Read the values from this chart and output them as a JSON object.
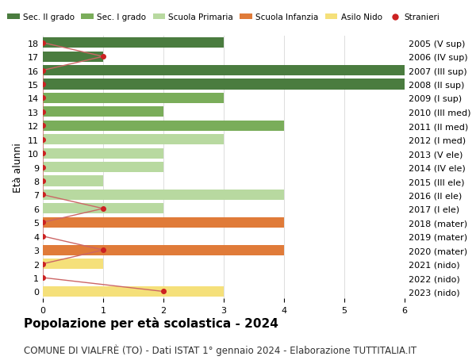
{
  "ages": [
    18,
    17,
    16,
    15,
    14,
    13,
    12,
    11,
    10,
    9,
    8,
    7,
    6,
    5,
    4,
    3,
    2,
    1,
    0
  ],
  "years": [
    "2005 (V sup)",
    "2006 (IV sup)",
    "2007 (III sup)",
    "2008 (II sup)",
    "2009 (I sup)",
    "2010 (III med)",
    "2011 (II med)",
    "2012 (I med)",
    "2013 (V ele)",
    "2014 (IV ele)",
    "2015 (III ele)",
    "2016 (II ele)",
    "2017 (I ele)",
    "2018 (mater)",
    "2019 (mater)",
    "2020 (mater)",
    "2021 (nido)",
    "2022 (nido)",
    "2023 (nido)"
  ],
  "bar_values": [
    3,
    1,
    6,
    6,
    3,
    2,
    4,
    3,
    2,
    2,
    1,
    4,
    2,
    4,
    0,
    4,
    1,
    0,
    3
  ],
  "bar_colors": [
    "#4a7c3f",
    "#4a7c3f",
    "#4a7c3f",
    "#4a7c3f",
    "#7aad5a",
    "#7aad5a",
    "#7aad5a",
    "#b8d9a0",
    "#b8d9a0",
    "#b8d9a0",
    "#b8d9a0",
    "#b8d9a0",
    "#b8d9a0",
    "#e07b39",
    "#e07b39",
    "#e07b39",
    "#f5e07a",
    "#f5e07a",
    "#f5e07a"
  ],
  "stranieri_values": [
    0,
    1,
    0,
    0,
    0,
    0,
    0,
    0,
    0,
    0,
    0,
    0,
    1,
    0,
    0,
    1,
    0,
    0,
    2
  ],
  "stranieri_color": "#cc2222",
  "line_color": "#cc6666",
  "xlim": [
    0,
    6
  ],
  "ylabel": "Età alunni",
  "title": "Popolazione per età scolastica - 2024",
  "subtitle": "COMUNE DI VIALFRÈ (TO) - Dati ISTAT 1° gennaio 2024 - Elaborazione TUTTITALIA.IT",
  "legend_labels": [
    "Sec. II grado",
    "Sec. I grado",
    "Scuola Primaria",
    "Scuola Infanzia",
    "Asilo Nido",
    "Stranieri"
  ],
  "legend_colors": [
    "#4a7c3f",
    "#7aad5a",
    "#b8d9a0",
    "#e07b39",
    "#f5e07a",
    "#cc2222"
  ],
  "bg_color": "#ffffff",
  "grid_color": "#dddddd",
  "bar_height": 0.75,
  "title_fontsize": 11,
  "subtitle_fontsize": 8.5,
  "tick_fontsize": 8,
  "label_fontsize": 9
}
